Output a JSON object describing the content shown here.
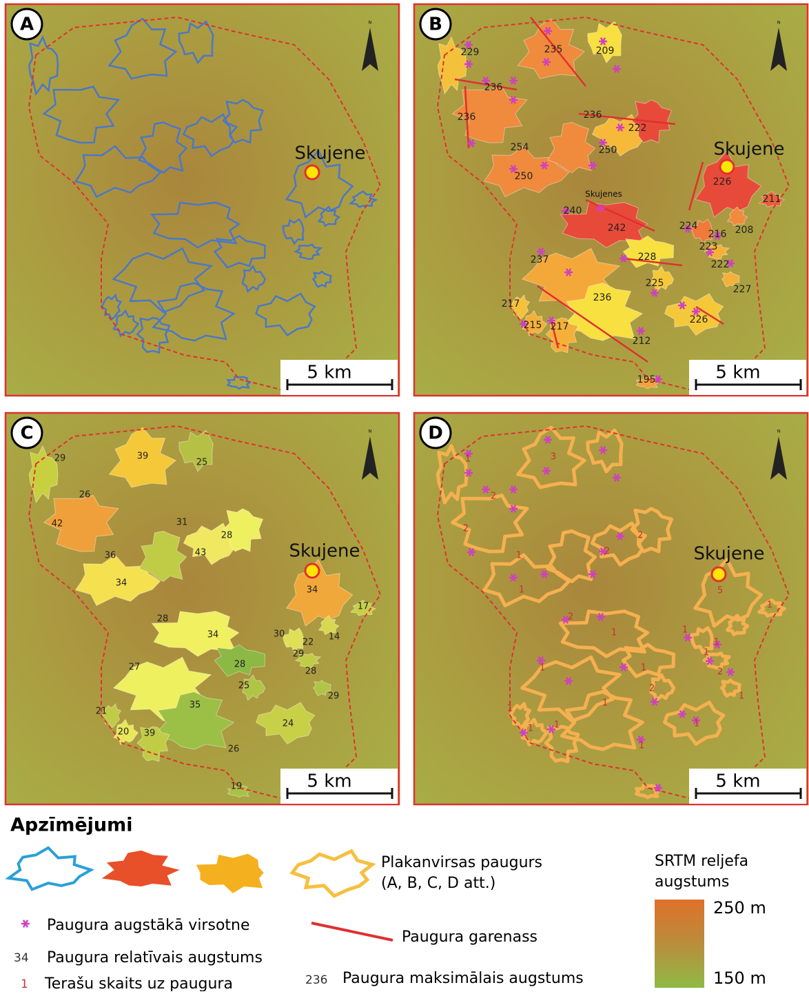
{
  "panels": [
    {
      "letter": "A",
      "town": "Skujene",
      "scale": "5 km",
      "north": "N"
    },
    {
      "letter": "B",
      "town": "Skujene",
      "scale": "5 km",
      "north": "N",
      "place_label": "Skujenes",
      "labels": [
        229,
        235,
        209,
        236,
        236,
        236,
        222,
        254,
        250,
        250,
        226,
        211,
        240,
        242,
        224,
        216,
        208,
        223,
        222,
        228,
        237,
        225,
        227,
        236,
        217,
        226,
        215,
        217,
        212,
        195
      ]
    },
    {
      "letter": "C",
      "town": "Skujene",
      "scale": "5 km",
      "north": "N",
      "labels": [
        29,
        39,
        25,
        26,
        42,
        31,
        28,
        36,
        43,
        34,
        34,
        17,
        28,
        30,
        34,
        22,
        14,
        29,
        27,
        28,
        28,
        25,
        29,
        35,
        21,
        20,
        39,
        24,
        26,
        19
      ]
    },
    {
      "letter": "D",
      "town": "Skujene",
      "scale": "5 km",
      "north": "N",
      "labels": [
        1,
        3,
        2,
        2,
        2,
        2,
        1,
        1,
        5,
        1,
        2,
        1,
        1,
        1,
        1,
        2,
        1,
        1,
        2,
        1,
        1,
        1,
        1,
        1,
        1,
        1
      ]
    }
  ],
  "legend": {
    "title": "Apzīmējumi",
    "hill_line1": "Plakanvirsas paugurs",
    "hill_line2": "(A, B, C, D att.)",
    "srtm_line1": "SRTM reljefa",
    "srtm_line2": "augstums",
    "high": "250 m",
    "low": "150 m",
    "peak": "Paugura augstākā virsotne",
    "axis": "Paugura garenass",
    "rel_sample": "34",
    "rel": "Paugura relatīvais augstums",
    "terr_sample": "1",
    "terr": "Terašu skaits uz paugura",
    "max_sample": "236",
    "max": "Paugura maksimālais augstums"
  }
}
